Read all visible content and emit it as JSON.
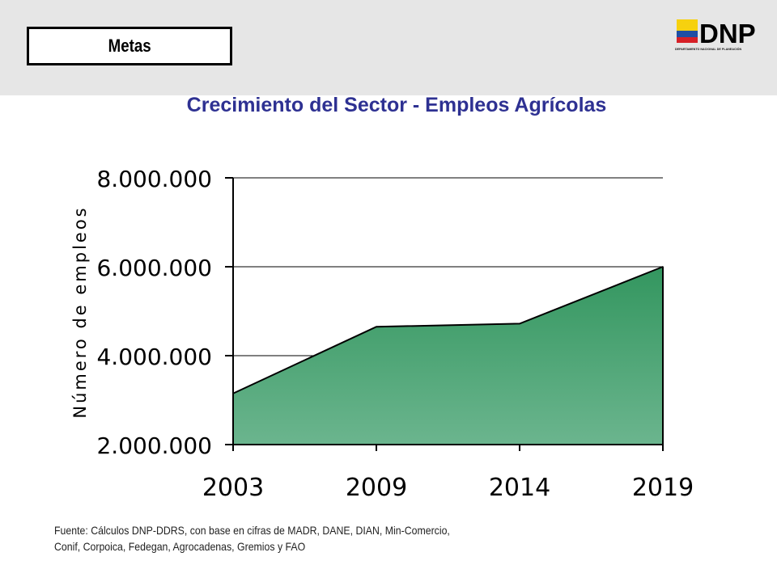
{
  "header": {
    "metas_label": "Metas",
    "logo": {
      "text": "DNP",
      "caption": "DEPARTAMENTO NACIONAL DE PLANEACIÓN"
    }
  },
  "colors": {
    "title": "#2e3192",
    "area_fill_top": "#33965f",
    "area_fill_bottom": "#6bb58e",
    "flag_yellow": "#f6d10f",
    "flag_blue": "#1f4ea3",
    "flag_red": "#d62027"
  },
  "chart_data": {
    "type": "area",
    "title": "Crecimiento del Sector - Empleos Agrícolas",
    "ylabel": "Número de empleos",
    "xlabel": "",
    "categories": [
      "2003",
      "2009",
      "2014",
      "2019"
    ],
    "values": [
      3150000,
      4650000,
      4720000,
      6000000
    ],
    "ylim": [
      2000000,
      8000000
    ],
    "yticks": [
      2000000,
      4000000,
      6000000,
      8000000
    ],
    "ytick_labels": [
      "2.000.000",
      "4.000.000",
      "6.000.000",
      "8.000.000"
    ],
    "grid": true
  },
  "source": "Fuente: Cálculos DNP-DDRS, con base en cifras de MADR, DANE, DIAN, Min-Comercio, Conif, Corpoica, Fedegan, Agrocadenas, Gremios y FAO"
}
